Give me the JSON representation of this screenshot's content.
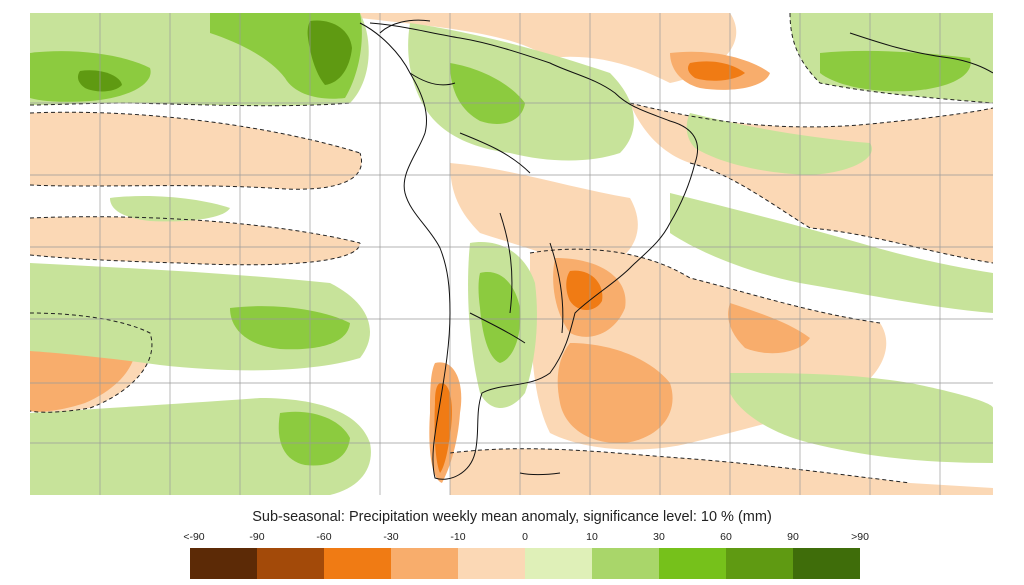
{
  "title": "Sub-seasonal: Precipitation weekly mean anomaly, significance level: 10 % (mm)",
  "legend": {
    "tick_labels": [
      "<-90",
      "-90",
      "-60",
      "-30",
      "-10",
      "0",
      "10",
      "30",
      "60",
      "90",
      ">90"
    ],
    "colors": [
      "#5c2a06",
      "#a34a09",
      "#f07b14",
      "#f8ad6c",
      "#fbd8b5",
      "#dff0b8",
      "#a9d66a",
      "#76c11b",
      "#5f9a12",
      "#3f6d0a"
    ]
  },
  "map_colors": {
    "background": "#ffffff",
    "dry_light": "#fbd8b5",
    "dry_medium": "#f8ad6c",
    "dry_strong": "#f07b14",
    "wet_light": "#c7e39a",
    "wet_medium": "#8ccb3f",
    "wet_strong": "#5f9a12",
    "coastline": "#111111",
    "grid": "#9a9a9a"
  },
  "map_region": "South America and surrounding oceans"
}
